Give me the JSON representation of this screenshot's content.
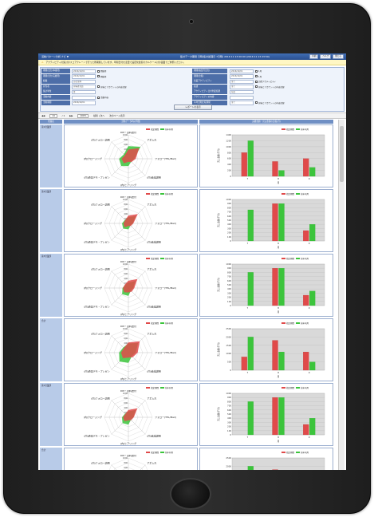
{
  "app": {
    "menu_label": "活動パターン分析 ナビ  ▼",
    "period_label": "集計データ期間 日時(集計処理日 7日時)  2016 11 13 00:00 (2016 11 13 23:59)",
    "buttons": [
      "印刷",
      "ヘルプ",
      "閉じる"
    ],
    "notice": "アクティビティの集計のスコアクレーンで行った所期間しています。年間日付を変更で設定化改善のカルケール計の画面でご参照ください。"
  },
  "form": {
    "rows": [
      {
        "l1": "期間(出力(本番月)",
        "v1": "2016/10/01",
        "c1": "開始月",
        "l2": "期間(抽出月出力)",
        "v2": "2016/10/01",
        "c2": "1月"
      },
      {
        "l1": "期間(出力(実績月)",
        "v1": "2016/10/01",
        "c1": "開始月",
        "l2": "期間(比較)",
        "v2": "2016/10/01",
        "c2": "1月"
      },
      {
        "l1": "組織",
        "v1": "自社全体",
        "c1": "",
        "l2": "営業アクティビティ",
        "v2": "全て",
        "c2": "訪問アクティビティ"
      },
      {
        "l1": "担当者",
        "v1": "担当者全員",
        "c1": "担当とアカウントの内容記録",
        "l2": "商談",
        "v2": "全て",
        "c2": "担当とアカウントの内容記録"
      },
      {
        "l1": "集計単位",
        "v1": "月",
        "c1": "",
        "l2": "アクティビティ日付判定結果",
        "v2": "年度",
        "c2": ""
      },
      {
        "l1": "活動内容",
        "v1": "",
        "c1": "活動内容",
        "l2": "アクティビティの内容",
        "v2": "",
        "c2": ""
      },
      {
        "l1": "活動期間",
        "v1": "2016/10/01",
        "c1": "",
        "l2": "平均活動比較期間",
        "v2": "全て",
        "c2": "担当とアカウントの内容記録"
      }
    ],
    "search_button": "レポートの表示"
  },
  "toolbar": {
    "page_prefix": "14",
    "page_of": "/ 1",
    "zoom": "100%",
    "find_label": "検索 | 次へ",
    "refresh": "次のページ表示"
  },
  "report": {
    "col_headers": [
      "所属名",
      "活動データ内の件数",
      "実績金額・見込金額の比較(月)"
    ],
    "legend": {
      "current": "指定期間",
      "previous": "前年同月"
    },
    "colors": {
      "current": "#e04a4a",
      "previous": "#3cc43c"
    },
    "radar_axes": [
      "DM・資料送付",
      "アポ入れ",
      "フォロー(TEL/Mail)",
      "(内)会議説明",
      "(内)ヒアリング",
      "(内)通常デモ・プレゼン",
      "(内)クロージング",
      "(内)フォロー訪問"
    ],
    "radar_ticks": [
      "1000",
      "800",
      "600",
      "400",
      "200"
    ],
    "bar_ylabel": "売上金額(千円)",
    "bar_categories": [
      "7",
      "8",
      "9"
    ],
    "bar_xlabel": "月",
    "rows": [
      {
        "label": "第1営業部",
        "bar_yticks": [
          "1400",
          "1200",
          "1000",
          "800",
          "600",
          "400",
          "200",
          "0"
        ],
        "bar_ymax": 1400,
        "radar": {
          "current": [
            380,
            620,
            300,
            180,
            120,
            260,
            280,
            200
          ],
          "previous": [
            520,
            700,
            240,
            160,
            300,
            420,
            380,
            260
          ]
        },
        "bars": {
          "current": [
            800,
            500,
            600
          ],
          "previous": [
            1200,
            200,
            300
          ]
        }
      },
      {
        "label": "第2営業部",
        "bar_yticks": [
          "1000",
          "900",
          "800",
          "700",
          "600",
          "500",
          "400",
          "300",
          "200",
          "100",
          "0"
        ],
        "bar_ymax": 1000,
        "radar": {
          "current": [
            320,
            540,
            200,
            140,
            100,
            220,
            200,
            180
          ],
          "previous": [
            260,
            420,
            180,
            120,
            240,
            300,
            260,
            200
          ]
        },
        "bars": {
          "current": [
            0,
            900,
            250
          ],
          "previous": [
            750,
            900,
            400
          ]
        }
      },
      {
        "label": "第3営業部",
        "bar_yticks": [
          "1000",
          "900",
          "800",
          "700",
          "600",
          "500",
          "400",
          "300",
          "200",
          "100",
          "0"
        ],
        "bar_ymax": 1000,
        "radar": {
          "current": [
            300,
            520,
            240,
            200,
            180,
            240,
            220,
            200
          ],
          "previous": [
            220,
            400,
            200,
            140,
            320,
            360,
            240,
            180
          ]
        },
        "bars": {
          "current": [
            0,
            900,
            250
          ],
          "previous": [
            800,
            900,
            350
          ]
        }
      },
      {
        "label": "合計",
        "bar_yticks": [
          "2500",
          "2000",
          "1500",
          "1000",
          "500",
          "0"
        ],
        "bar_ymax": 2500,
        "radar": {
          "current": [
            420,
            660,
            380,
            260,
            200,
            320,
            300,
            260
          ],
          "previous": [
            380,
            560,
            300,
            200,
            420,
            520,
            380,
            300
          ]
        },
        "bars": {
          "current": [
            800,
            1800,
            1100
          ],
          "previous": [
            2000,
            1100,
            500
          ]
        }
      },
      {
        "label": "第1営業部",
        "bar_yticks": [
          "1000",
          "900",
          "800",
          "700",
          "600",
          "500",
          "400",
          "300",
          "200",
          "100",
          "0"
        ],
        "bar_ymax": 1000,
        "radar": {
          "current": [
            300,
            520,
            220,
            160,
            120,
            220,
            220,
            180
          ],
          "previous": [
            240,
            420,
            200,
            140,
            300,
            340,
            260,
            200
          ]
        },
        "bars": {
          "current": [
            0,
            900,
            250
          ],
          "previous": [
            800,
            900,
            400
          ]
        }
      },
      {
        "label": "合計",
        "bar_yticks": [
          "2500",
          "2000",
          "1500",
          "1000",
          "500",
          "0"
        ],
        "bar_ymax": 2500,
        "radar": {
          "current": [
            420,
            660,
            380,
            260,
            200,
            320,
            300,
            260
          ],
          "previous": [
            380,
            560,
            300,
            200,
            420,
            520,
            380,
            300
          ]
        },
        "bars": {
          "current": [
            800,
            1800,
            1100
          ],
          "previous": [
            2000,
            1100,
            500
          ]
        }
      }
    ]
  }
}
